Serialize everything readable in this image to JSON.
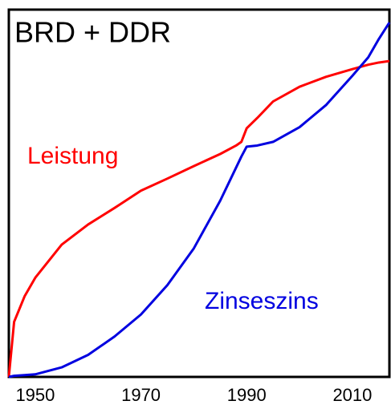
{
  "chart_data": {
    "type": "line",
    "title": "BRD + DDR",
    "x": [
      1945,
      1946,
      1948,
      1950,
      1955,
      1960,
      1965,
      1970,
      1975,
      1980,
      1985,
      1988,
      1989,
      1990,
      1992,
      1995,
      2000,
      2005,
      2010,
      2013,
      2015,
      2017
    ],
    "series": [
      {
        "name": "Leistung",
        "color": "#ff0000",
        "values": [
          0,
          15,
          22,
          27,
          36,
          41.5,
          46,
          50.7,
          54,
          57.4,
          60.7,
          63,
          64,
          67.7,
          70.5,
          75,
          79,
          81.7,
          83.8,
          85,
          85.6,
          86
        ]
      },
      {
        "name": "Zinseszins",
        "color": "#0000e0",
        "values": [
          0,
          0.3,
          0.5,
          0.7,
          2.6,
          6,
          11,
          17,
          25,
          35,
          48,
          57,
          60,
          62.7,
          63,
          64,
          68,
          74,
          82,
          87,
          92,
          96.5
        ]
      }
    ],
    "xlim": [
      1945,
      2017
    ],
    "xticks": [
      1950,
      1970,
      1990,
      2010
    ],
    "ylim": [
      0,
      100
    ]
  }
}
